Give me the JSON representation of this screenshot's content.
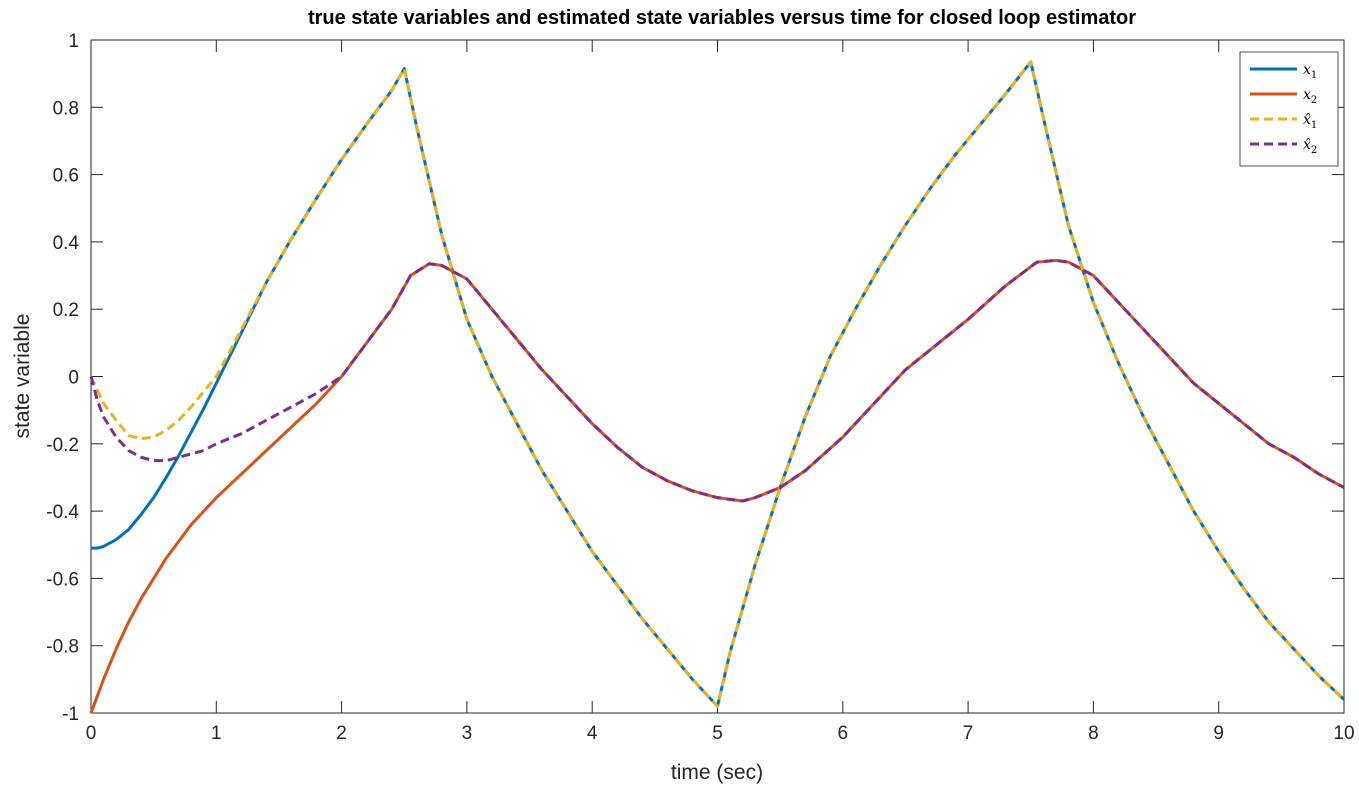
{
  "chart_data": {
    "type": "line",
    "title": "true state variables and estimated state variables versus time for closed loop estimator",
    "xlabel": "time (sec)",
    "ylabel": "state variable",
    "xlim": [
      0,
      10
    ],
    "ylim": [
      -1,
      1
    ],
    "xticks": [
      0,
      1,
      2,
      3,
      4,
      5,
      6,
      7,
      8,
      9,
      10
    ],
    "xtick_labels": [
      "0",
      "1",
      "2",
      "3",
      "4",
      "5",
      "6",
      "7",
      "8",
      "9",
      "10"
    ],
    "yticks": [
      -1,
      -0.8,
      -0.6,
      -0.4,
      -0.2,
      0,
      0.2,
      0.4,
      0.6,
      0.8,
      1
    ],
    "ytick_labels": [
      "-1",
      "-0.8",
      "-0.6",
      "-0.4",
      "-0.2",
      "0",
      "0.2",
      "0.4",
      "0.6",
      "0.8",
      "1"
    ],
    "grid": false,
    "legend_position": "top-right",
    "series": [
      {
        "name": "x1",
        "color": "#0072BD",
        "dash": "solid",
        "points": [
          [
            0,
            -0.51
          ],
          [
            0.05,
            -0.51
          ],
          [
            0.1,
            -0.505
          ],
          [
            0.2,
            -0.485
          ],
          [
            0.3,
            -0.455
          ],
          [
            0.4,
            -0.41
          ],
          [
            0.5,
            -0.36
          ],
          [
            0.6,
            -0.3
          ],
          [
            0.7,
            -0.235
          ],
          [
            0.8,
            -0.165
          ],
          [
            0.9,
            -0.095
          ],
          [
            1.0,
            -0.02
          ],
          [
            1.2,
            0.13
          ],
          [
            1.4,
            0.28
          ],
          [
            1.6,
            0.41
          ],
          [
            1.8,
            0.53
          ],
          [
            2.0,
            0.645
          ],
          [
            2.2,
            0.75
          ],
          [
            2.4,
            0.85
          ],
          [
            2.5,
            0.915
          ],
          [
            2.6,
            0.74
          ],
          [
            2.8,
            0.42
          ],
          [
            3.0,
            0.17
          ],
          [
            3.2,
            0.0
          ],
          [
            3.4,
            -0.14
          ],
          [
            3.6,
            -0.28
          ],
          [
            3.8,
            -0.4
          ],
          [
            4.0,
            -0.52
          ],
          [
            4.2,
            -0.62
          ],
          [
            4.4,
            -0.72
          ],
          [
            4.6,
            -0.81
          ],
          [
            4.8,
            -0.9
          ],
          [
            5.0,
            -0.98
          ],
          [
            5.1,
            -0.82
          ],
          [
            5.3,
            -0.56
          ],
          [
            5.5,
            -0.33
          ],
          [
            5.7,
            -0.12
          ],
          [
            5.9,
            0.06
          ],
          [
            6.1,
            0.2
          ],
          [
            6.3,
            0.33
          ],
          [
            6.5,
            0.45
          ],
          [
            6.7,
            0.56
          ],
          [
            6.9,
            0.66
          ],
          [
            7.1,
            0.75
          ],
          [
            7.3,
            0.84
          ],
          [
            7.5,
            0.935
          ],
          [
            7.6,
            0.77
          ],
          [
            7.8,
            0.45
          ],
          [
            8.0,
            0.22
          ],
          [
            8.2,
            0.04
          ],
          [
            8.4,
            -0.12
          ],
          [
            8.6,
            -0.26
          ],
          [
            8.8,
            -0.4
          ],
          [
            9.0,
            -0.52
          ],
          [
            9.2,
            -0.63
          ],
          [
            9.4,
            -0.73
          ],
          [
            9.6,
            -0.81
          ],
          [
            9.8,
            -0.89
          ],
          [
            10.0,
            -0.96
          ]
        ]
      },
      {
        "name": "x2",
        "color": "#D95319",
        "dash": "solid",
        "points": [
          [
            0,
            -1.0
          ],
          [
            0.05,
            -0.95
          ],
          [
            0.1,
            -0.9
          ],
          [
            0.2,
            -0.81
          ],
          [
            0.3,
            -0.73
          ],
          [
            0.4,
            -0.66
          ],
          [
            0.5,
            -0.6
          ],
          [
            0.6,
            -0.54
          ],
          [
            0.7,
            -0.49
          ],
          [
            0.8,
            -0.44
          ],
          [
            0.9,
            -0.4
          ],
          [
            1.0,
            -0.36
          ],
          [
            1.2,
            -0.29
          ],
          [
            1.4,
            -0.22
          ],
          [
            1.6,
            -0.15
          ],
          [
            1.8,
            -0.08
          ],
          [
            2.0,
            0.0
          ],
          [
            2.2,
            0.1
          ],
          [
            2.4,
            0.2
          ],
          [
            2.55,
            0.3
          ],
          [
            2.7,
            0.335
          ],
          [
            2.8,
            0.33
          ],
          [
            3.0,
            0.29
          ],
          [
            3.2,
            0.2
          ],
          [
            3.4,
            0.11
          ],
          [
            3.6,
            0.02
          ],
          [
            3.8,
            -0.06
          ],
          [
            4.0,
            -0.14
          ],
          [
            4.2,
            -0.21
          ],
          [
            4.4,
            -0.27
          ],
          [
            4.6,
            -0.31
          ],
          [
            4.8,
            -0.34
          ],
          [
            5.0,
            -0.36
          ],
          [
            5.2,
            -0.37
          ],
          [
            5.3,
            -0.36
          ],
          [
            5.5,
            -0.33
          ],
          [
            5.7,
            -0.28
          ],
          [
            6.0,
            -0.18
          ],
          [
            6.5,
            0.02
          ],
          [
            7.0,
            0.17
          ],
          [
            7.3,
            0.27
          ],
          [
            7.55,
            0.34
          ],
          [
            7.7,
            0.345
          ],
          [
            7.8,
            0.34
          ],
          [
            8.0,
            0.3
          ],
          [
            8.2,
            0.22
          ],
          [
            8.4,
            0.14
          ],
          [
            8.6,
            0.06
          ],
          [
            8.8,
            -0.02
          ],
          [
            9.0,
            -0.08
          ],
          [
            9.2,
            -0.14
          ],
          [
            9.4,
            -0.2
          ],
          [
            9.6,
            -0.24
          ],
          [
            9.8,
            -0.29
          ],
          [
            10.0,
            -0.33
          ]
        ]
      },
      {
        "name": "x1 estimate",
        "color": "#EDB120",
        "dash": "dashed",
        "points": [
          [
            0,
            0.0
          ],
          [
            0.05,
            -0.04
          ],
          [
            0.1,
            -0.08
          ],
          [
            0.2,
            -0.13
          ],
          [
            0.3,
            -0.175
          ],
          [
            0.4,
            -0.185
          ],
          [
            0.5,
            -0.18
          ],
          [
            0.6,
            -0.16
          ],
          [
            0.7,
            -0.13
          ],
          [
            0.8,
            -0.09
          ],
          [
            0.9,
            -0.045
          ],
          [
            1.0,
            0.0
          ],
          [
            1.2,
            0.14
          ],
          [
            1.4,
            0.28
          ],
          [
            1.6,
            0.41
          ],
          [
            1.8,
            0.53
          ],
          [
            2.0,
            0.645
          ],
          [
            2.2,
            0.75
          ],
          [
            2.4,
            0.85
          ],
          [
            2.5,
            0.915
          ],
          [
            2.6,
            0.74
          ],
          [
            2.8,
            0.42
          ],
          [
            3.0,
            0.17
          ],
          [
            3.2,
            0.0
          ],
          [
            3.4,
            -0.14
          ],
          [
            3.6,
            -0.28
          ],
          [
            3.8,
            -0.4
          ],
          [
            4.0,
            -0.52
          ],
          [
            4.2,
            -0.62
          ],
          [
            4.4,
            -0.72
          ],
          [
            4.6,
            -0.81
          ],
          [
            4.8,
            -0.9
          ],
          [
            5.0,
            -0.98
          ],
          [
            5.1,
            -0.82
          ],
          [
            5.3,
            -0.56
          ],
          [
            5.5,
            -0.33
          ],
          [
            5.7,
            -0.12
          ],
          [
            5.9,
            0.06
          ],
          [
            6.1,
            0.2
          ],
          [
            6.3,
            0.33
          ],
          [
            6.5,
            0.45
          ],
          [
            6.7,
            0.56
          ],
          [
            6.9,
            0.66
          ],
          [
            7.1,
            0.75
          ],
          [
            7.3,
            0.84
          ],
          [
            7.5,
            0.935
          ],
          [
            7.6,
            0.77
          ],
          [
            7.8,
            0.45
          ],
          [
            8.0,
            0.22
          ],
          [
            8.2,
            0.04
          ],
          [
            8.4,
            -0.12
          ],
          [
            8.6,
            -0.26
          ],
          [
            8.8,
            -0.4
          ],
          [
            9.0,
            -0.52
          ],
          [
            9.2,
            -0.63
          ],
          [
            9.4,
            -0.73
          ],
          [
            9.6,
            -0.81
          ],
          [
            9.8,
            -0.89
          ],
          [
            10.0,
            -0.96
          ]
        ]
      },
      {
        "name": "x2 estimate",
        "color": "#7E2F8E",
        "dash": "dashed",
        "points": [
          [
            0,
            0.0
          ],
          [
            0.05,
            -0.07
          ],
          [
            0.1,
            -0.12
          ],
          [
            0.2,
            -0.18
          ],
          [
            0.3,
            -0.22
          ],
          [
            0.4,
            -0.24
          ],
          [
            0.5,
            -0.25
          ],
          [
            0.6,
            -0.25
          ],
          [
            0.7,
            -0.24
          ],
          [
            0.8,
            -0.23
          ],
          [
            0.9,
            -0.22
          ],
          [
            1.0,
            -0.2
          ],
          [
            1.2,
            -0.17
          ],
          [
            1.4,
            -0.13
          ],
          [
            1.6,
            -0.09
          ],
          [
            1.8,
            -0.05
          ],
          [
            2.0,
            0.0
          ],
          [
            2.2,
            0.1
          ],
          [
            2.4,
            0.2
          ],
          [
            2.55,
            0.3
          ],
          [
            2.7,
            0.335
          ],
          [
            2.8,
            0.33
          ],
          [
            3.0,
            0.29
          ],
          [
            3.2,
            0.2
          ],
          [
            3.4,
            0.11
          ],
          [
            3.6,
            0.02
          ],
          [
            3.8,
            -0.06
          ],
          [
            4.0,
            -0.14
          ],
          [
            4.2,
            -0.21
          ],
          [
            4.4,
            -0.27
          ],
          [
            4.6,
            -0.31
          ],
          [
            4.8,
            -0.34
          ],
          [
            5.0,
            -0.36
          ],
          [
            5.2,
            -0.37
          ],
          [
            5.3,
            -0.36
          ],
          [
            5.5,
            -0.33
          ],
          [
            5.7,
            -0.28
          ],
          [
            6.0,
            -0.18
          ],
          [
            6.5,
            0.02
          ],
          [
            7.0,
            0.17
          ],
          [
            7.3,
            0.27
          ],
          [
            7.55,
            0.34
          ],
          [
            7.7,
            0.345
          ],
          [
            7.8,
            0.34
          ],
          [
            8.0,
            0.3
          ],
          [
            8.2,
            0.22
          ],
          [
            8.4,
            0.14
          ],
          [
            8.6,
            0.06
          ],
          [
            8.8,
            -0.02
          ],
          [
            9.0,
            -0.08
          ],
          [
            9.2,
            -0.14
          ],
          [
            9.4,
            -0.2
          ],
          [
            9.6,
            -0.24
          ],
          [
            9.8,
            -0.29
          ],
          [
            10.0,
            -0.33
          ]
        ]
      }
    ]
  }
}
